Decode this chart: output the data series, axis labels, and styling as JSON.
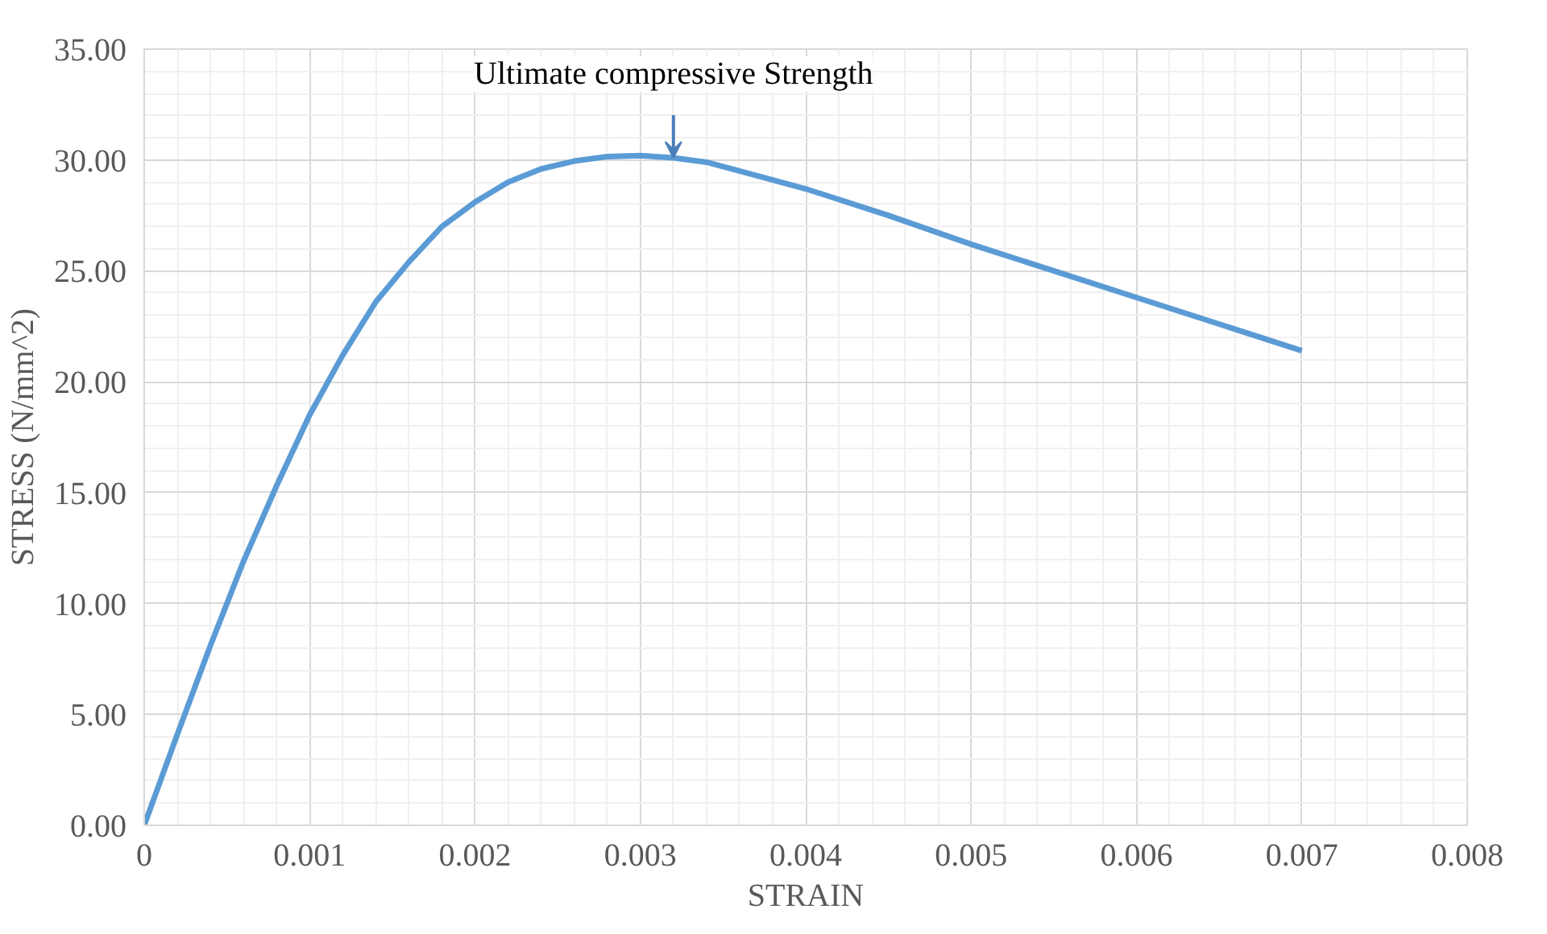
{
  "chart_data": {
    "type": "line",
    "xlabel": "STRAIN",
    "ylabel": "STRESS (N/mm^2)",
    "x": [
      0,
      0.0002,
      0.0004,
      0.0006,
      0.0008,
      0.001,
      0.0012,
      0.0014,
      0.0016,
      0.0018,
      0.002,
      0.0022,
      0.0024,
      0.0026,
      0.0028,
      0.003,
      0.0032,
      0.0034,
      0.0036,
      0.004,
      0.0045,
      0.005,
      0.0055,
      0.006,
      0.0065,
      0.007
    ],
    "series": [
      {
        "color": "#5b9bd5",
        "values": [
          0,
          4.1,
          8.1,
          11.9,
          15.3,
          18.5,
          21.2,
          23.6,
          25.4,
          27.0,
          28.1,
          29.0,
          29.6,
          29.95,
          30.15,
          30.2,
          30.1,
          29.9,
          29.5,
          28.7,
          27.5,
          26.2,
          25.0,
          23.8,
          22.6,
          21.4
        ]
      }
    ],
    "xlim": [
      0,
      0.008
    ],
    "ylim": [
      0,
      35
    ],
    "xticks": [
      0,
      0.001,
      0.002,
      0.003,
      0.004,
      0.005,
      0.006,
      0.007,
      0.008
    ],
    "yticks": [
      {
        "value": 0,
        "label": "0.00"
      },
      {
        "value": 5,
        "label": "5.00"
      },
      {
        "value": 10,
        "label": "10.00"
      },
      {
        "value": 15,
        "label": "15.00"
      },
      {
        "value": 20,
        "label": "20.00"
      },
      {
        "value": 25,
        "label": "25.00"
      },
      {
        "value": 30,
        "label": "30.00"
      },
      {
        "value": 35,
        "label": "35.00"
      }
    ],
    "grid": true,
    "marker": "none",
    "line_style": "solid",
    "annotations": [
      {
        "text": "Ultimate compressive Strength",
        "x": 0.0032,
        "y": 30.1
      }
    ]
  }
}
